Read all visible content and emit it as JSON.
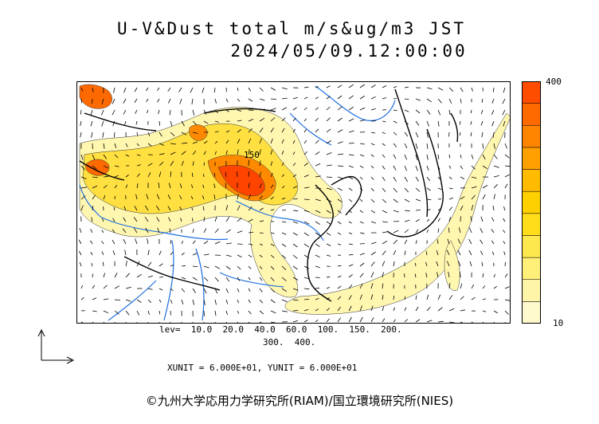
{
  "header": {
    "title_line1": "U-V&Dust total m/s&ug/m3 JST",
    "title_line2": "2024/05/09.12:00:00"
  },
  "colorbar": {
    "max_label": "400",
    "min_label": "10",
    "colors": [
      "#fffacd",
      "#fff5a8",
      "#fff07a",
      "#ffe84d",
      "#ffdd1a",
      "#ffd000",
      "#ffbb00",
      "#ffa000",
      "#ff8500",
      "#ff6a00",
      "#ff4d00"
    ]
  },
  "legend": {
    "levels_line1": "lev=  10.0  20.0  40.0  60.0  100.  150.  200.",
    "levels_line2": "300.  400.",
    "units_line": "XUNIT = 6.000E+01, YUNIT = 6.000E+01"
  },
  "map": {
    "contour_label": "150",
    "colors": {
      "coast": "#000000",
      "rivers": "#1f6fe0",
      "dust_low": "#fff7b0",
      "dust_mid": "#ffe040",
      "dust_high": "#ff8a00",
      "dust_max": "#ff4400"
    }
  },
  "footer": {
    "copyright": "©九州大学応用力学研究所(RIAM)/国立環境研究所(NIES)"
  }
}
